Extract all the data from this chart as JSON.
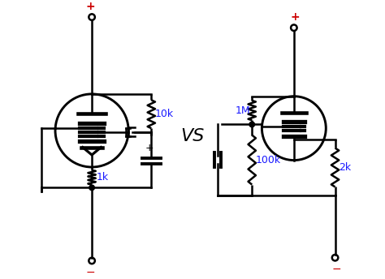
{
  "bg_color": "#ffffff",
  "line_color": "#000000",
  "blue_color": "#1a1aff",
  "red_color": "#cc0000",
  "vs_text": "VS",
  "label_10k": "10k",
  "label_1k": "1k",
  "label_1M": "1M",
  "label_100k": "100k",
  "label_2k": "2k",
  "plus_left": "+",
  "minus_left": "−",
  "plus_cap": "+",
  "plus_right": "+",
  "minus_right": "−",
  "lw": 1.8
}
